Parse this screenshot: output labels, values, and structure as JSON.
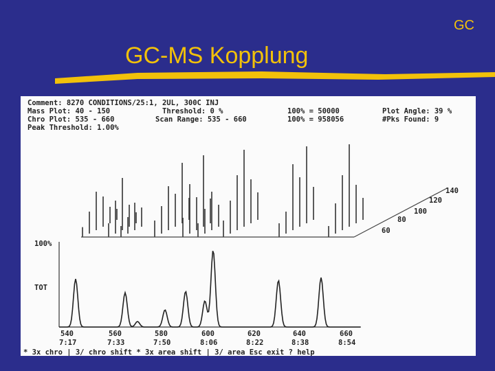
{
  "header": {
    "corner_label": "GC",
    "title": "GC-MS Kopplung"
  },
  "scan_header": {
    "line1": "Comment: 8270 CONDITIONS/25:1, 2UL, 300C INJ",
    "line2a": "Mass Plot: 40 - 150",
    "line2b": "Threshold: 0 %",
    "line2c": "100% = 50000",
    "line2d": "Plot Angle: 39 %",
    "line3a": "Chro Plot: 535 - 660",
    "line3b": "Scan Range: 535 - 660",
    "line3c": "100% = 958056",
    "line3d": "#Pks Found: 9",
    "line4": "Peak Threshold: 1.00%"
  },
  "chromatogram": {
    "y_label_top": "100%",
    "y_label_mid": "TOT",
    "scan_ticks": [
      "540",
      "560",
      "580",
      "600",
      "620",
      "640",
      "660"
    ],
    "time_ticks": [
      "7:17",
      "7:33",
      "7:50",
      "8:06",
      "8:22",
      "8:38",
      "8:54"
    ],
    "footer": "* 3x chro  | 3/ chro shift  * 3x area shift  | 3/ area  Esc exit  ? help"
  },
  "mass_axis": {
    "labels": [
      "60",
      "80",
      "100",
      "120",
      "140"
    ]
  },
  "colors": {
    "background": "#2b2d8c",
    "accent": "#f2c10a"
  }
}
